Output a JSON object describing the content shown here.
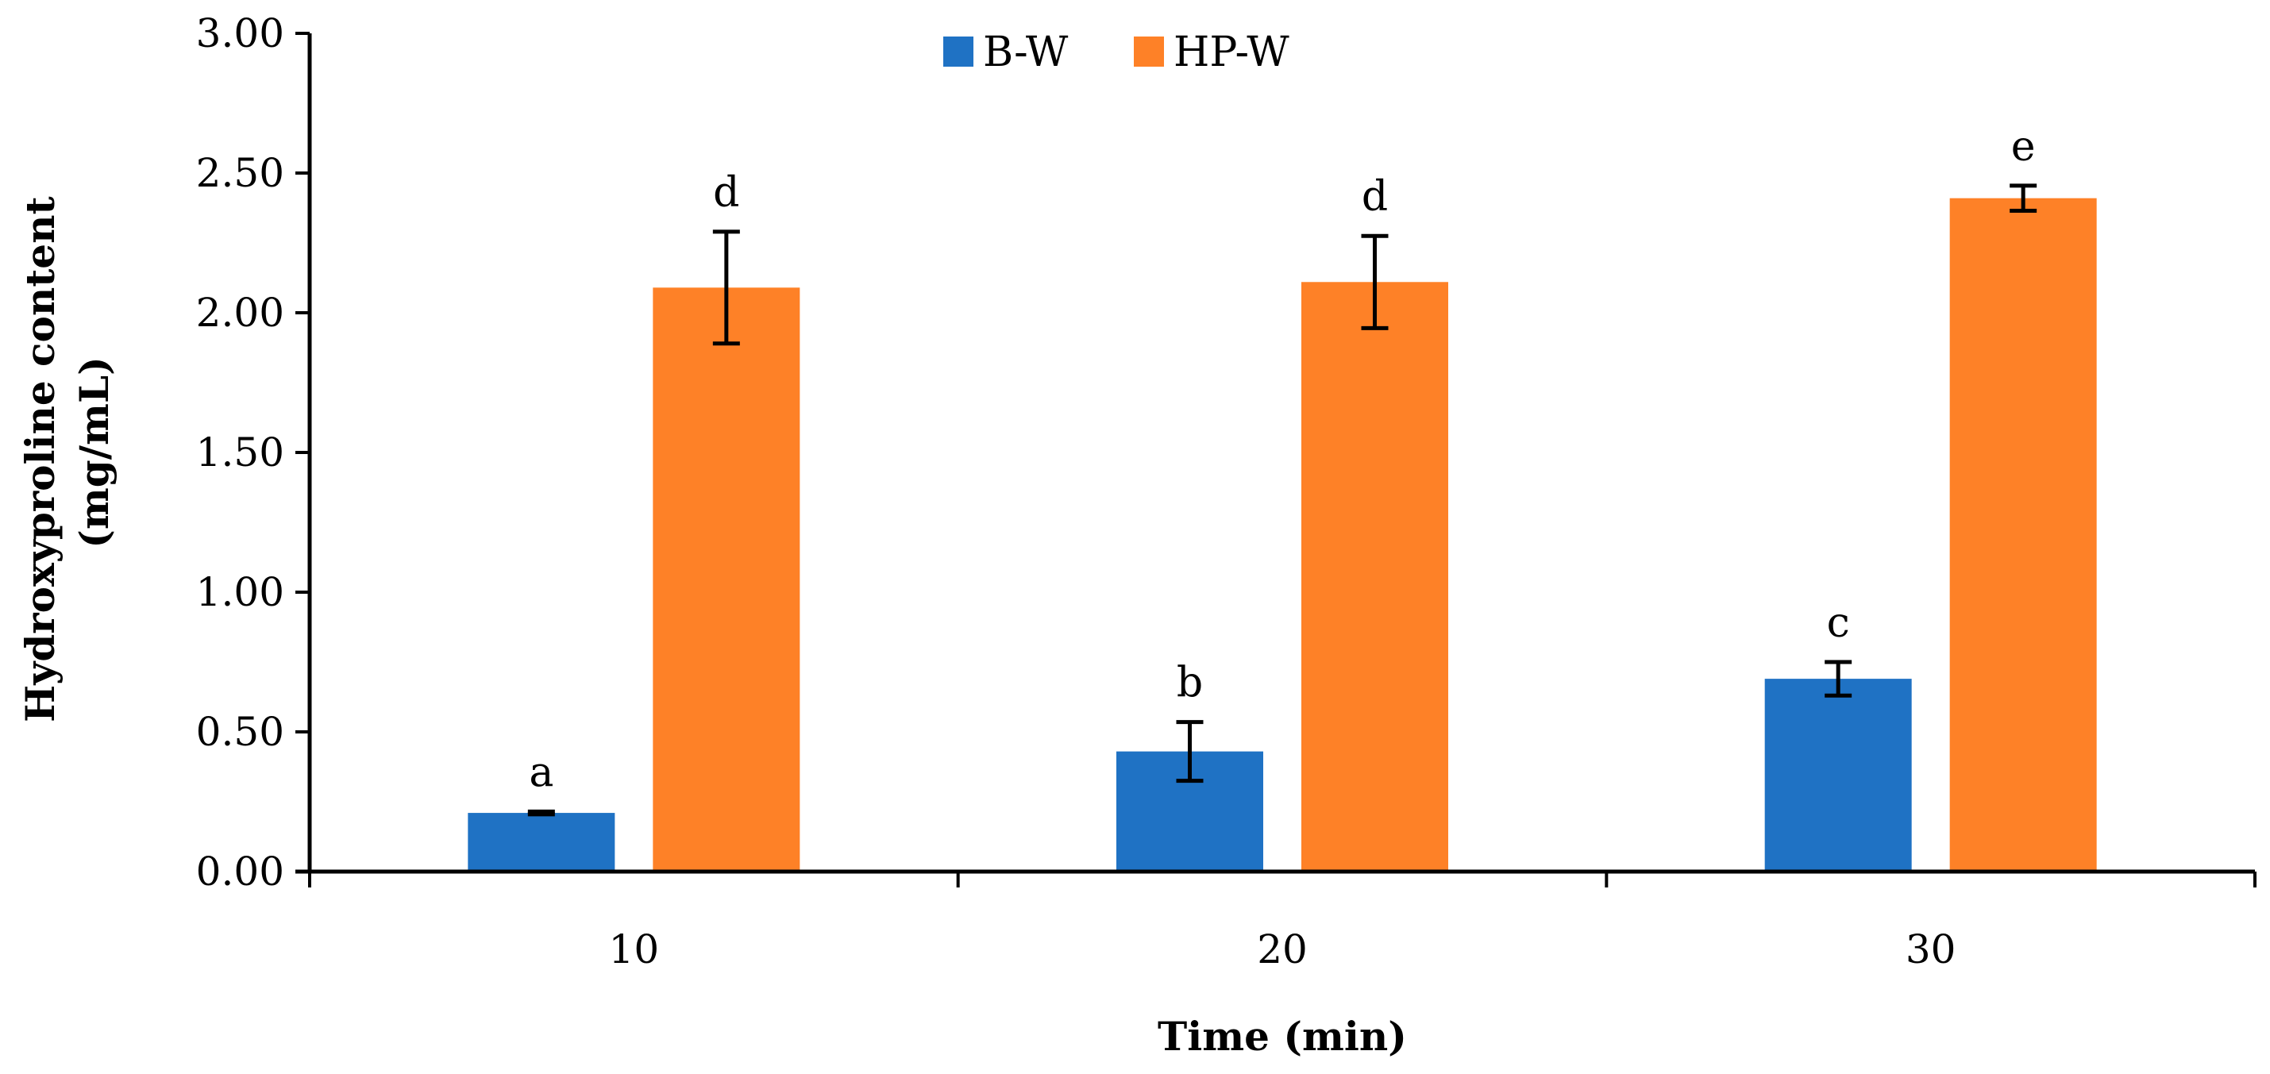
{
  "chart_data": {
    "type": "bar",
    "xlabel": "Time (min)",
    "ylabel": [
      "Hydroxyproline content",
      "(mg/mL)"
    ],
    "categories": [
      "10",
      "20",
      "30"
    ],
    "ylim": [
      0,
      3.0
    ],
    "yticks": [
      "0.00",
      "0.50",
      "1.00",
      "1.50",
      "2.00",
      "2.50",
      "3.00"
    ],
    "legend_position": "top-center",
    "grid": false,
    "series": [
      {
        "name": "B-W",
        "color": "#1f72c4",
        "values": [
          0.21,
          0.43,
          0.69
        ],
        "errors": [
          0.005,
          0.105,
          0.06
        ],
        "labels": [
          "a",
          "b",
          "c"
        ]
      },
      {
        "name": "HP-W",
        "color": "#fe8127",
        "values": [
          2.09,
          2.11,
          2.41
        ],
        "errors": [
          0.2,
          0.165,
          0.045
        ],
        "labels": [
          "d",
          "d",
          "e"
        ]
      }
    ]
  }
}
